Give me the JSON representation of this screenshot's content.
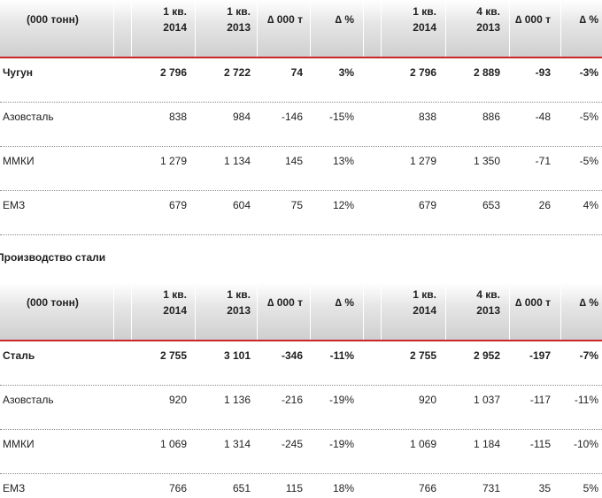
{
  "tables": [
    {
      "header": [
        "(000 тонн)",
        [
          "1 кв.",
          "2014"
        ],
        [
          "1 кв.",
          "2013"
        ],
        "∆ 000 т",
        "∆ %",
        [
          "1 кв.",
          "2014"
        ],
        [
          "4 кв.",
          "2013"
        ],
        "∆ 000 т",
        "∆ %"
      ],
      "rows": [
        [
          "Чугун",
          "2 796",
          "2 722",
          "74",
          "3%",
          "2 796",
          "2 889",
          "-93",
          "-3%"
        ],
        [
          "Азовсталь",
          "838",
          "984",
          "-146",
          "-15%",
          "838",
          "886",
          "-48",
          "-5%"
        ],
        [
          "ММКИ",
          "1 279",
          "1 134",
          "145",
          "13%",
          "1 279",
          "1 350",
          "-71",
          "-5%"
        ],
        [
          "ЕМЗ",
          "679",
          "604",
          "75",
          "12%",
          "679",
          "653",
          "26",
          "4%"
        ]
      ]
    },
    {
      "header": [
        "(000 тонн)",
        [
          "1 кв.",
          "2014"
        ],
        [
          "1 кв.",
          "2013"
        ],
        "∆ 000 т",
        "∆ %",
        [
          "1 кв.",
          "2014"
        ],
        [
          "4 кв.",
          "2013"
        ],
        "∆ 000 т",
        "∆ %"
      ],
      "rows": [
        [
          "Сталь",
          "2 755",
          "3 101",
          "-346",
          "-11%",
          "2 755",
          "2 952",
          "-197",
          "-7%"
        ],
        [
          "Азовсталь",
          "920",
          "1 136",
          "-216",
          "-19%",
          "920",
          "1 037",
          "-117",
          "-11%"
        ],
        [
          "ММКИ",
          "1 069",
          "1 314",
          "-245",
          "-19%",
          "1 069",
          "1 184",
          "-115",
          "-10%"
        ],
        [
          "ЕМЗ",
          "766",
          "651",
          "115",
          "18%",
          "766",
          "731",
          "35",
          "5%"
        ]
      ]
    }
  ],
  "section_title": "Производство стали"
}
